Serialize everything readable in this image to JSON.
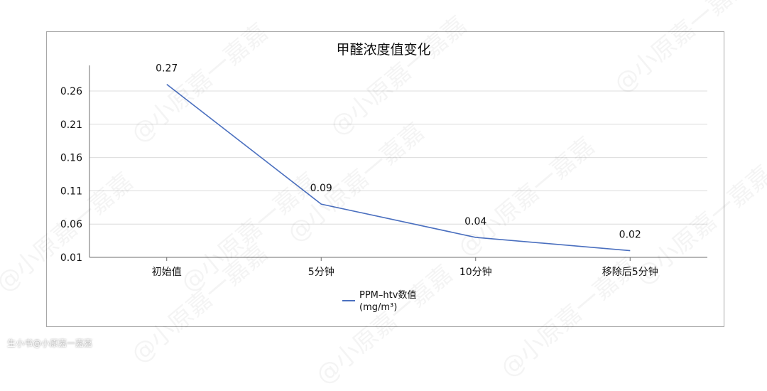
{
  "chart_data": {
    "type": "line",
    "title": "甲醛浓度值变化",
    "categories": [
      "初始值",
      "5分钟",
      "10分钟",
      "移除后5分钟"
    ],
    "series": [
      {
        "name": "PPM–htv数值\n(mg/m³)",
        "values": [
          0.27,
          0.09,
          0.04,
          0.02
        ],
        "color": "#4a6fbf"
      }
    ],
    "data_labels": [
      "0.27",
      "0.09",
      "0.04",
      "0.02"
    ],
    "yticks": [
      0.01,
      0.06,
      0.11,
      0.16,
      0.21,
      0.26
    ],
    "ytick_labels": [
      "0.01",
      "0.06",
      "0.11",
      "0.16",
      "0.21",
      "0.26"
    ],
    "ylim": [
      0.01,
      0.29
    ],
    "grid": true,
    "legend": "bottom"
  },
  "watermark": "@小原嘉一嘉嘉",
  "footer_watermark": "生小书@小原嘉一嘉嘉"
}
